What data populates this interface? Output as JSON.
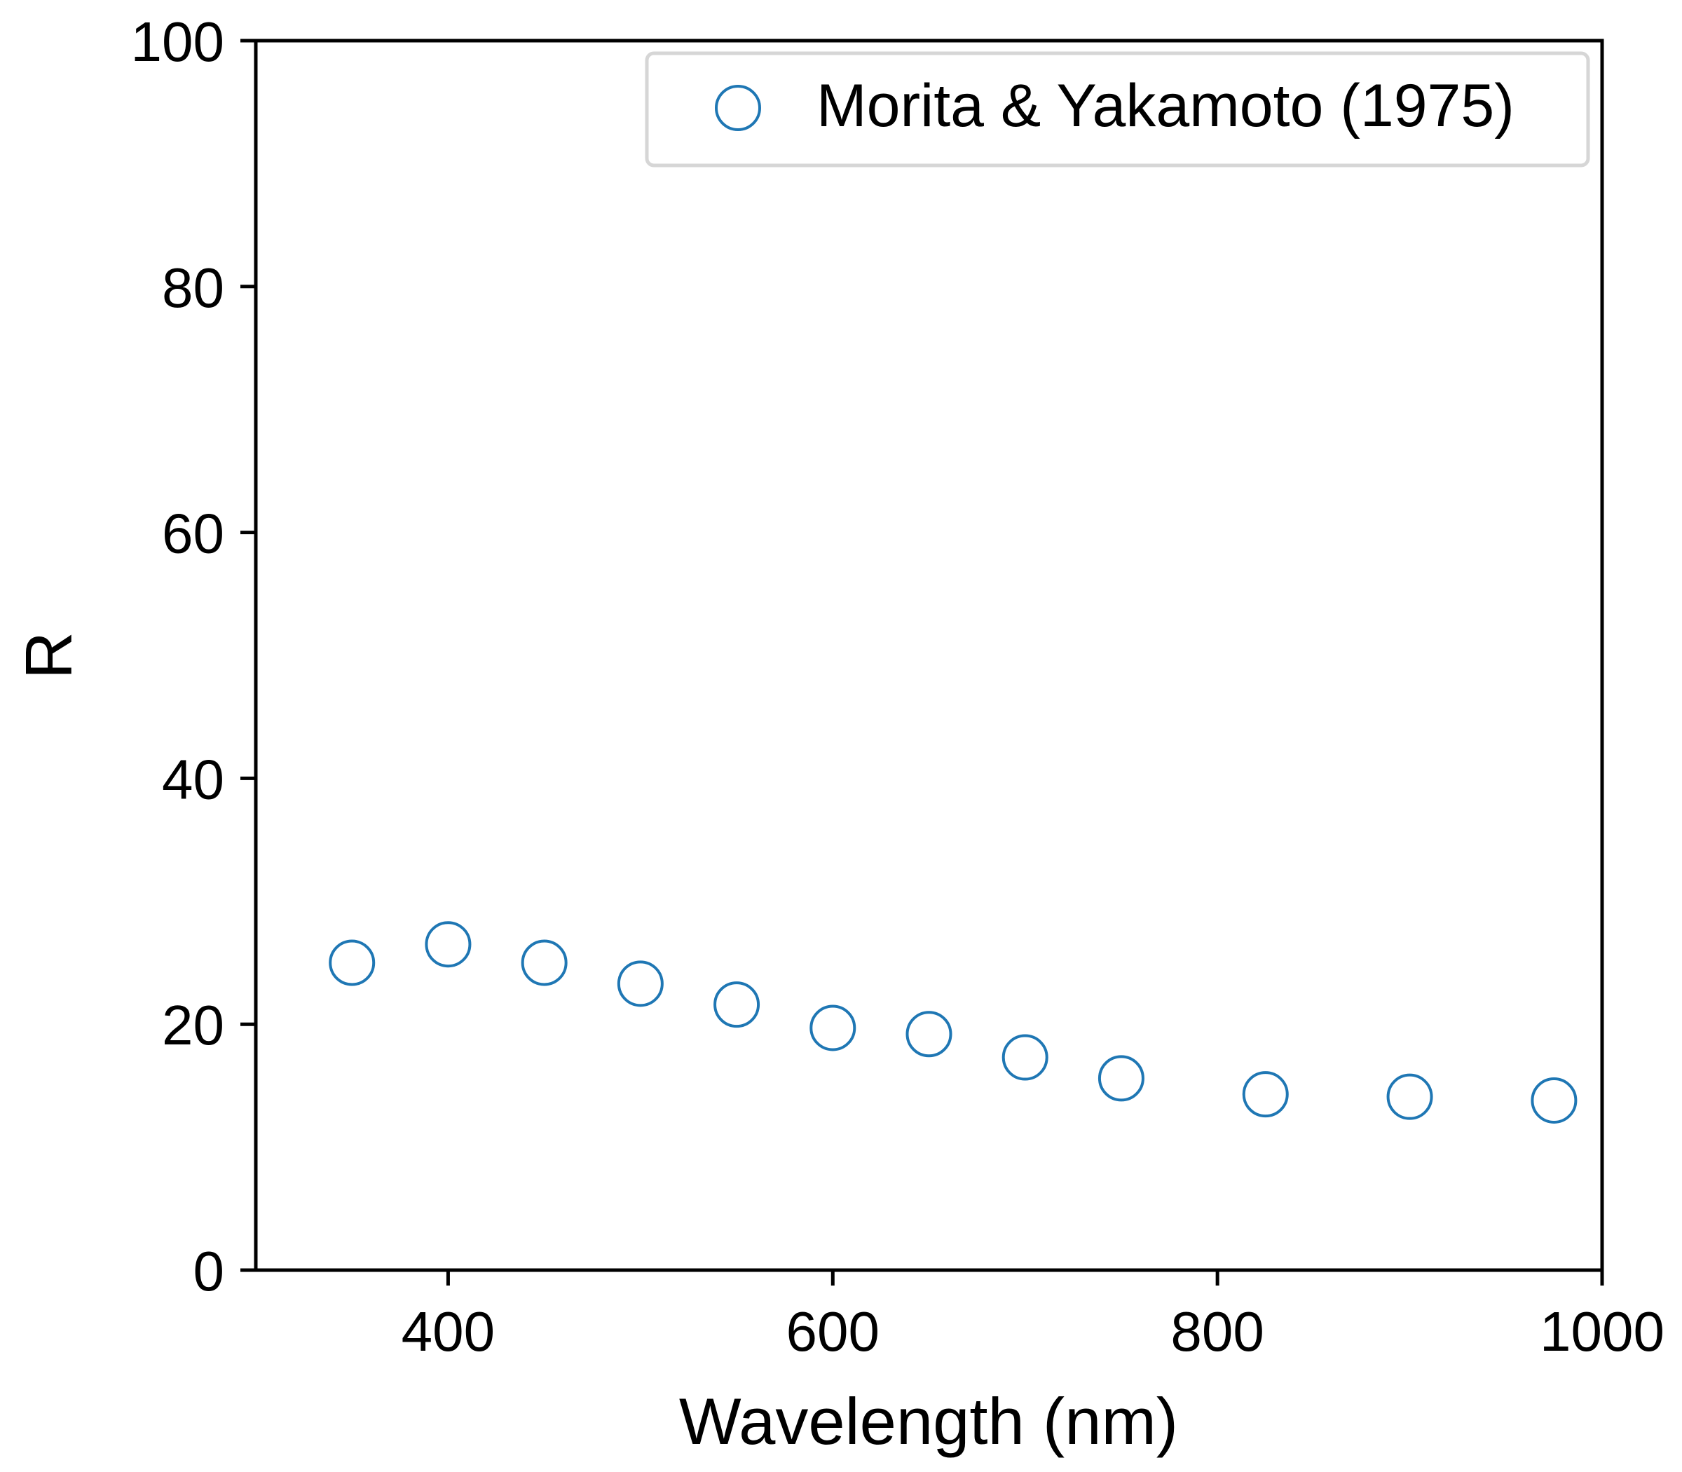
{
  "chart_data": {
    "type": "scatter",
    "title": "",
    "xlabel": "Wavelength (nm)",
    "ylabel": "R",
    "xlim": [
      300,
      1000
    ],
    "ylim": [
      0,
      100
    ],
    "xticks": [
      400,
      600,
      800,
      1000
    ],
    "yticks": [
      0,
      20,
      40,
      60,
      80,
      100
    ],
    "grid": false,
    "legend_position": "top-right",
    "series": [
      {
        "name": "Morita & Yakamoto (1975)",
        "color": "#1f77b4",
        "marker": "open-circle",
        "x": [
          350,
          400,
          450,
          500,
          550,
          600,
          650,
          700,
          750,
          825,
          900,
          975
        ],
        "y": [
          25.0,
          26.5,
          25.0,
          23.3,
          21.6,
          19.7,
          19.2,
          17.3,
          15.6,
          14.3,
          14.1,
          13.8
        ]
      }
    ]
  }
}
